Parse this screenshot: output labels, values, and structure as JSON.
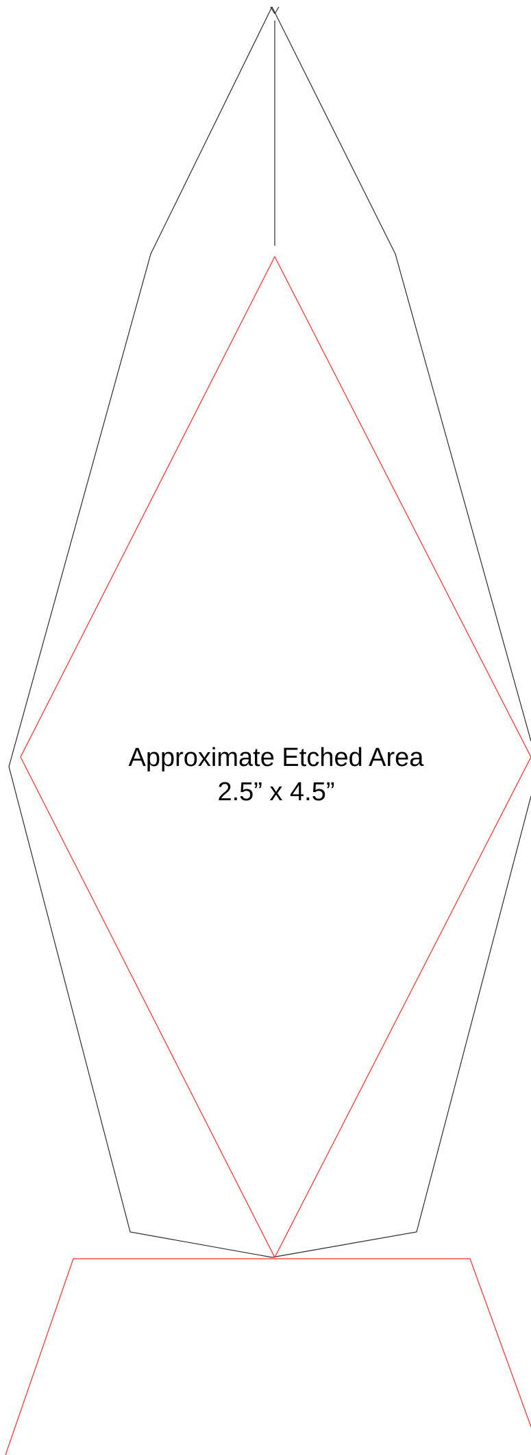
{
  "diagram": {
    "label_line1": "Approximate Etched Area",
    "label_line2": "2.5” x 4.5”",
    "colors": {
      "trophy_outline": "#2b2b2b",
      "etched_area": "#ff2a2a",
      "text": "#000000",
      "background": "#ffffff"
    }
  }
}
